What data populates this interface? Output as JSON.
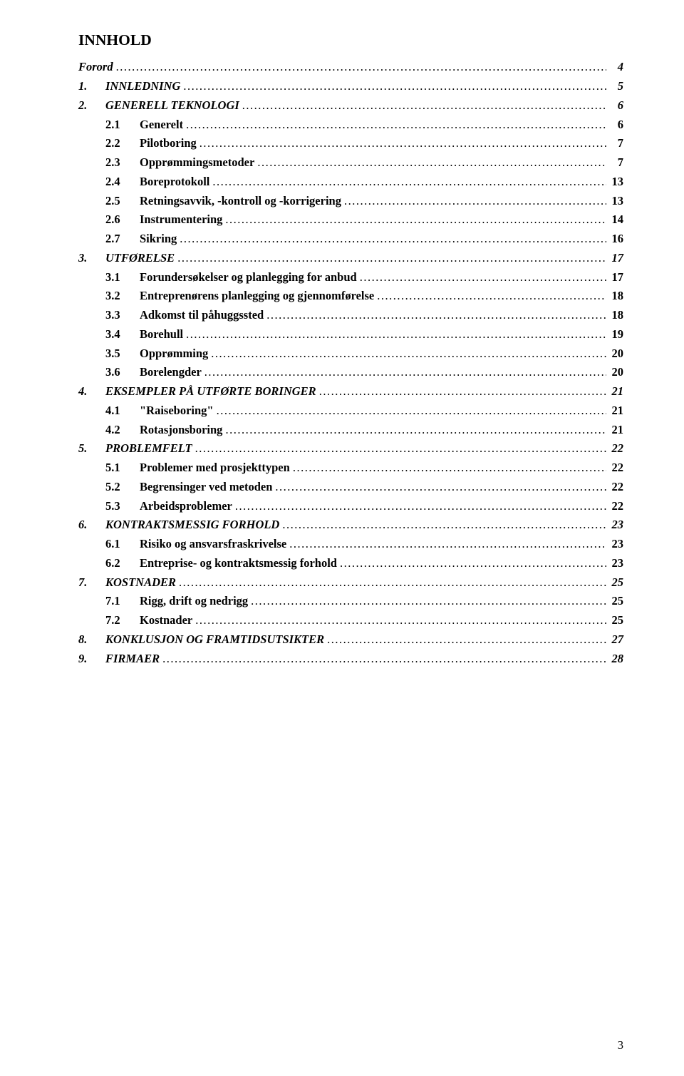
{
  "title": "INNHOLD",
  "footerPage": "3",
  "entries": [
    {
      "level": 0,
      "label": "Forord",
      "page": "4"
    },
    {
      "level": 1,
      "prefix": "1.",
      "label": "INNLEDNING",
      "page": "5",
      "prefixWidth": 38
    },
    {
      "level": 1,
      "prefix": "2.",
      "label": "GENERELL TEKNOLOGI",
      "page": "6",
      "prefixWidth": 38
    },
    {
      "level": 2,
      "prefix": "2.1",
      "label": "Generelt",
      "page": "6",
      "prefixWidth": 48
    },
    {
      "level": 2,
      "prefix": "2.2",
      "label": "Pilotboring",
      "page": "7",
      "prefixWidth": 48
    },
    {
      "level": 2,
      "prefix": "2.3",
      "label": "Opprømmingsmetoder",
      "page": "7",
      "prefixWidth": 48
    },
    {
      "level": 2,
      "prefix": "2.4",
      "label": "Boreprotokoll",
      "page": "13",
      "prefixWidth": 48
    },
    {
      "level": 2,
      "prefix": "2.5",
      "label": "Retningsavvik, -kontroll og -korrigering",
      "page": "13",
      "prefixWidth": 48
    },
    {
      "level": 2,
      "prefix": "2.6",
      "label": "Instrumentering",
      "page": "14",
      "prefixWidth": 48
    },
    {
      "level": 2,
      "prefix": "2.7",
      "label": "Sikring",
      "page": "16",
      "prefixWidth": 48
    },
    {
      "level": 1,
      "prefix": "3.",
      "label": "UTFØRELSE",
      "page": "17",
      "prefixWidth": 38
    },
    {
      "level": 2,
      "prefix": "3.1",
      "label": "Forundersøkelser og planlegging for anbud",
      "page": "17",
      "prefixWidth": 48
    },
    {
      "level": 2,
      "prefix": "3.2",
      "label": "Entreprenørens planlegging og gjennomførelse",
      "page": "18",
      "prefixWidth": 48
    },
    {
      "level": 2,
      "prefix": "3.3",
      "label": "Adkomst til påhuggssted",
      "page": "18",
      "prefixWidth": 48
    },
    {
      "level": 2,
      "prefix": "3.4",
      "label": "Borehull",
      "page": "19",
      "prefixWidth": 48
    },
    {
      "level": 2,
      "prefix": "3.5",
      "label": "Opprømming",
      "page": "20",
      "prefixWidth": 48
    },
    {
      "level": 2,
      "prefix": "3.6",
      "label": "Borelengder",
      "page": "20",
      "prefixWidth": 48
    },
    {
      "level": 1,
      "prefix": "4.",
      "label": "EKSEMPLER PÅ UTFØRTE BORINGER",
      "page": "21",
      "prefixWidth": 38
    },
    {
      "level": 2,
      "prefix": "4.1",
      "label": "\"Raiseboring\"",
      "page": "21",
      "prefixWidth": 48
    },
    {
      "level": 2,
      "prefix": "4.2",
      "label": "Rotasjonsboring",
      "page": "21",
      "prefixWidth": 48
    },
    {
      "level": 1,
      "prefix": "5.",
      "label": "PROBLEMFELT",
      "page": "22",
      "prefixWidth": 38
    },
    {
      "level": 2,
      "prefix": "5.1",
      "label": "Problemer med prosjekttypen",
      "page": "22",
      "prefixWidth": 48
    },
    {
      "level": 2,
      "prefix": "5.2",
      "label": "Begrensinger ved metoden",
      "page": "22",
      "prefixWidth": 48
    },
    {
      "level": 2,
      "prefix": "5.3",
      "label": "Arbeidsproblemer",
      "page": "22",
      "prefixWidth": 48
    },
    {
      "level": 1,
      "prefix": "6.",
      "label": "KONTRAKTSMESSIG FORHOLD",
      "page": "23",
      "prefixWidth": 38
    },
    {
      "level": 2,
      "prefix": "6.1",
      "label": "Risiko og ansvarsfraskrivelse",
      "page": "23",
      "prefixWidth": 48
    },
    {
      "level": 2,
      "prefix": "6.2",
      "label": "Entreprise- og kontraktsmessig forhold",
      "page": "23",
      "prefixWidth": 48
    },
    {
      "level": 1,
      "prefix": "7.",
      "label": "KOSTNADER",
      "page": "25",
      "prefixWidth": 38
    },
    {
      "level": 2,
      "prefix": "7.1",
      "label": "Rigg, drift og nedrigg",
      "page": "25",
      "prefixWidth": 48
    },
    {
      "level": 2,
      "prefix": "7.2",
      "label": "Kostnader",
      "page": "25",
      "prefixWidth": 48
    },
    {
      "level": 1,
      "prefix": "8.",
      "label": "KONKLUSJON OG FRAMTIDSUTSIKTER",
      "page": "27",
      "prefixWidth": 38
    },
    {
      "level": 1,
      "prefix": "9.",
      "label": "FIRMAER",
      "page": "28",
      "prefixWidth": 38
    }
  ]
}
